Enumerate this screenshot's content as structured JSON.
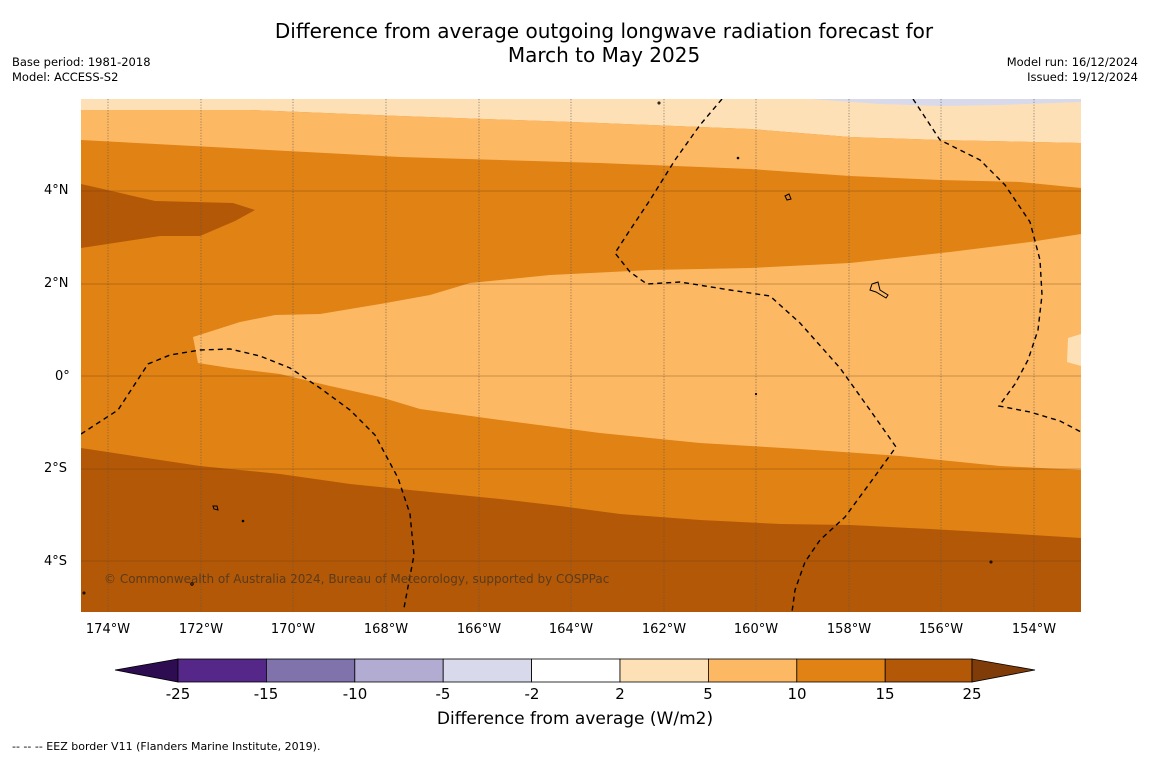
{
  "title_line1": "Difference from average outgoing longwave radiation forecast for",
  "title_line2": "March to May 2025",
  "meta_left": {
    "base_period": "Base period: 1981-2018",
    "model": "Model: ACCESS-S2"
  },
  "meta_right": {
    "model_run": "Model run: 16/12/2024",
    "issued": "Issued: 19/12/2024"
  },
  "latitude_ticks": [
    "4°N",
    "2°N",
    "0°",
    "2°S",
    "4°S"
  ],
  "longitude_ticks": [
    "174°W",
    "172°W",
    "170°W",
    "168°W",
    "166°W",
    "164°W",
    "162°W",
    "160°W",
    "158°W",
    "156°W",
    "154°W"
  ],
  "colorbar": {
    "ticks": [
      "-25",
      "-15",
      "-10",
      "-5",
      "-2",
      "2",
      "5",
      "10",
      "15",
      "25"
    ],
    "colors": [
      "#2d0c52",
      "#542788",
      "#8073ac",
      "#b2abd2",
      "#d8daeb",
      "#ffffff",
      "#fee0b6",
      "#fdb863",
      "#e08214",
      "#b35806",
      "#7f3b08"
    ],
    "title": "Difference from average (W/m2)"
  },
  "copyright": "© Commonwealth of Australia 2024, Bureau of Meteorology, supported by COSPPac",
  "legend_note": "--  --  -- EEZ border V11 (Flanders Marine Institute, 2019)."
}
